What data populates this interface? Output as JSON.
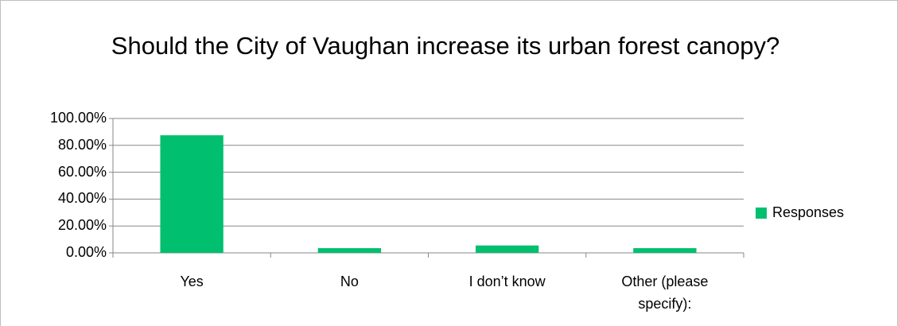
{
  "chart_data": {
    "type": "bar",
    "title": "Should the City of Vaughan increase its urban forest canopy?",
    "categories": [
      "Yes",
      "No",
      "I don’t know",
      "Other (please specify):"
    ],
    "series": [
      {
        "name": "Responses",
        "color": "#00bf6f",
        "values": [
          87.5,
          3.5,
          5.5,
          3.5
        ]
      }
    ],
    "ylim": [
      0,
      100
    ],
    "yticks": [
      {
        "value": 0,
        "label": "0.00%"
      },
      {
        "value": 20,
        "label": "20.00%"
      },
      {
        "value": 40,
        "label": "40.00%"
      },
      {
        "value": 60,
        "label": "60.00%"
      },
      {
        "value": 80,
        "label": "80.00%"
      },
      {
        "value": 100,
        "label": "100.00%"
      }
    ],
    "grid": true,
    "legend": "right"
  }
}
